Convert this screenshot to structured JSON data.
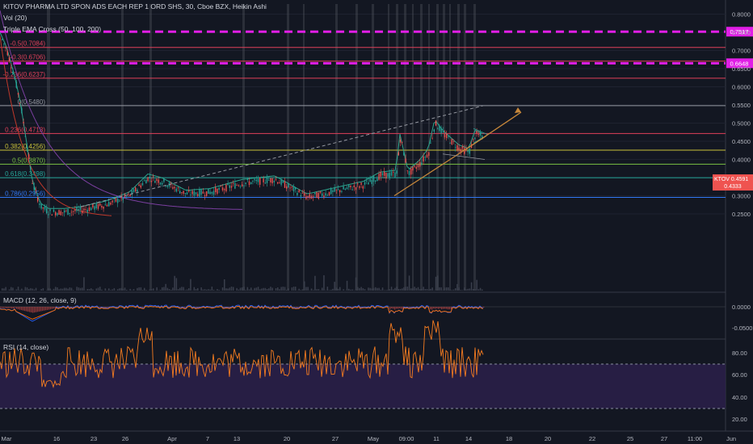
{
  "header": {
    "symbol_title": "KITOV PHARMA LTD SPON ADS EACH REP 1 ORD SHS, 30, Cboe BZX, Heikin Ashi",
    "indicators": [
      "Vol (20)",
      "Triple EMA Cross (50, 100, 200)"
    ]
  },
  "fib_levels": [
    {
      "label": "-0.5(0.7084)",
      "price": 0.7084,
      "color": "#e0405a"
    },
    {
      "label": "-0.3(0.6706)",
      "price": 0.6706,
      "color": "#e0405a"
    },
    {
      "label": "-0.236(0.6237)",
      "price": 0.6237,
      "color": "#e0405a"
    },
    {
      "label": "0(0.5480)",
      "price": 0.548,
      "color": "#9598a1"
    },
    {
      "label": "0.236(0.4713)",
      "price": 0.4713,
      "color": "#e0405a"
    },
    {
      "label": "0.382(0.4256)",
      "price": 0.4256,
      "color": "#c8c03a"
    },
    {
      "label": "0.5(0.3870)",
      "price": 0.387,
      "color": "#7ac143"
    },
    {
      "label": "0.618(0.3498)",
      "price": 0.3498,
      "color": "#26a69a"
    },
    {
      "label": "0.786(0.2956)",
      "price": 0.2956,
      "color": "#3179f5"
    }
  ],
  "magenta_levels": [
    {
      "price": 0.7517,
      "label": "0.7517"
    },
    {
      "price": 0.6648,
      "label": "0.6648"
    }
  ],
  "price_axis": {
    "ticks": [
      "0.8000",
      "0.7500",
      "0.7000",
      "0.6500",
      "0.6000",
      "0.5500",
      "0.5000",
      "0.4500",
      "0.4000",
      "0.3500",
      "0.3000",
      "0.2500"
    ],
    "current_symbol": "KTOV",
    "current_price": "0.4591",
    "current_price_2": "0.4333"
  },
  "macd": {
    "label": "MACD (12, 26, close, 9)",
    "ticks": [
      "0.0000",
      "-0.0500"
    ]
  },
  "rsi": {
    "label": "RSI (14, close)",
    "ticks": [
      "80.00",
      "60.00",
      "40.00",
      "20.00"
    ]
  },
  "time_axis": {
    "labels": [
      "Mar",
      "16",
      "23",
      "26",
      "Apr",
      "7",
      "13",
      "20",
      "27",
      "May",
      "09:00",
      "11",
      "14",
      "18",
      "20",
      "22",
      "25",
      "27",
      "11:00",
      "Jun"
    ]
  },
  "colors": {
    "background": "#131722",
    "bull": "#26a69a",
    "bear": "#ef5350",
    "magenta": "#e11ee6",
    "rsi": "#f57c20",
    "rsi_band": "#2a1f48",
    "arrow": "#c8883a"
  }
}
